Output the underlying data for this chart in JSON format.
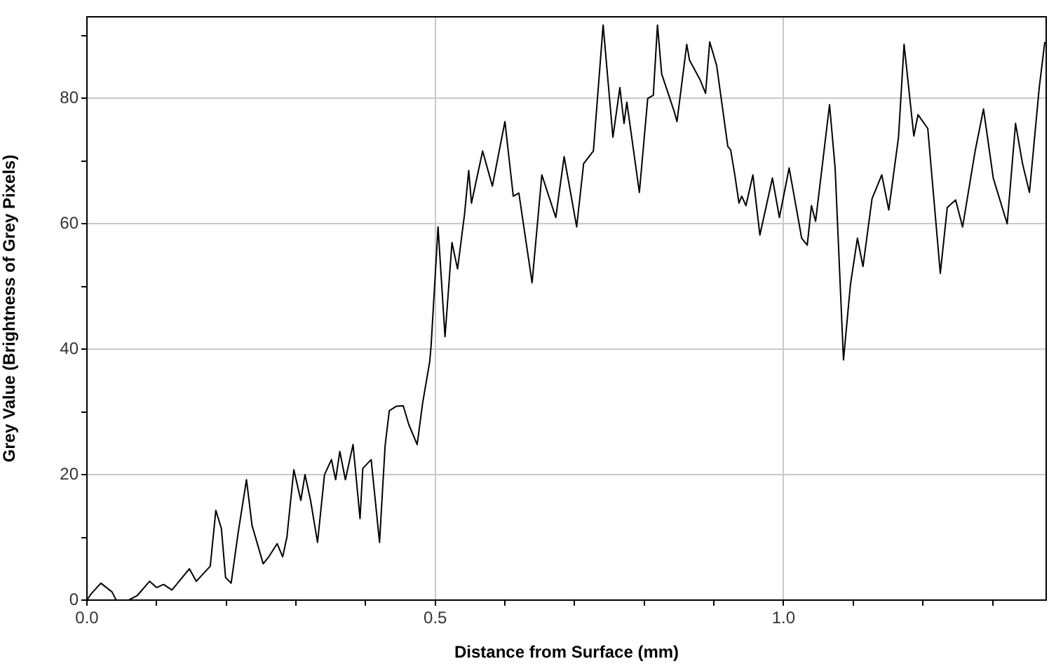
{
  "chart_data": {
    "type": "line",
    "xlabel": "Distance from Surface (mm)",
    "ylabel": "Grey Value (Brightness of Grey Pixels)",
    "color": "#000000",
    "marker": "none",
    "line_style": "solid",
    "grid": true,
    "legend": false,
    "xlim": [
      0,
      1.377
    ],
    "ylim": [
      0,
      93
    ],
    "xticks": [
      {
        "value": 0,
        "label": "0.0"
      },
      {
        "value": 0.1,
        "label": null
      },
      {
        "value": 0.2,
        "label": null
      },
      {
        "value": 0.3,
        "label": null
      },
      {
        "value": 0.4,
        "label": null
      },
      {
        "value": 0.5,
        "label": "0.5"
      },
      {
        "value": 0.6,
        "label": null
      },
      {
        "value": 0.7,
        "label": null
      },
      {
        "value": 0.8,
        "label": null
      },
      {
        "value": 0.9,
        "label": null
      },
      {
        "value": 1,
        "label": "1.0"
      },
      {
        "value": 1.1,
        "label": null
      },
      {
        "value": 1.2,
        "label": null
      },
      {
        "value": 1.3,
        "label": null
      }
    ],
    "yticks": [
      0,
      {
        "value": 10,
        "label": null
      },
      20,
      {
        "value": 30,
        "label": null
      },
      40,
      {
        "value": 50,
        "label": null
      },
      60,
      {
        "value": 70,
        "label": null
      },
      80,
      {
        "value": 90,
        "label": null
      }
    ],
    "x": [
      0,
      0.006,
      0.02,
      0.036,
      0.042,
      0.06,
      0.072,
      0.09,
      0.1,
      0.11,
      0.122,
      0.147,
      0.157,
      0.177,
      0.185,
      0.193,
      0.199,
      0.207,
      0.217,
      0.229,
      0.237,
      0.253,
      0.261,
      0.273,
      0.281,
      0.287,
      0.297,
      0.307,
      0.313,
      0.321,
      0.331,
      0.341,
      0.351,
      0.357,
      0.363,
      0.371,
      0.382,
      0.392,
      0.396,
      0.408,
      0.42,
      0.428,
      0.434,
      0.444,
      0.454,
      0.462,
      0.474,
      0.482,
      0.492,
      0.494,
      0.504,
      0.514,
      0.524,
      0.532,
      0.542,
      0.548,
      0.552,
      0.568,
      0.582,
      0.6,
      0.612,
      0.62,
      0.639,
      0.653,
      0.673,
      0.685,
      0.703,
      0.713,
      0.727,
      0.741,
      0.755,
      0.765,
      0.771,
      0.775,
      0.793,
      0.805,
      0.813,
      0.819,
      0.825,
      0.843,
      0.847,
      0.861,
      0.865,
      0.88,
      0.888,
      0.894,
      0.904,
      0.92,
      0.924,
      0.93,
      0.936,
      0.94,
      0.946,
      0.956,
      0.966,
      0.984,
      0.994,
      1.008,
      1.026,
      1.034,
      1.04,
      1.046,
      1.066,
      1.074,
      1.086,
      1.096,
      1.106,
      1.114,
      1.127,
      1.141,
      1.151,
      1.165,
      1.173,
      1.187,
      1.193,
      1.207,
      1.225,
      1.235,
      1.247,
      1.257,
      1.275,
      1.287,
      1.301,
      1.321,
      1.333,
      1.343,
      1.353,
      1.367,
      1.375
    ],
    "values": [
      0,
      1,
      2.7,
      1.3,
      0,
      0,
      0.7,
      3,
      2,
      2.5,
      1.6,
      5,
      3,
      5.4,
      14.3,
      11.4,
      3.6,
      2.7,
      10.7,
      19.2,
      11.9,
      5.8,
      6.9,
      9,
      6.9,
      10,
      20.8,
      15.9,
      20,
      15.9,
      9.2,
      20,
      22.4,
      19.2,
      23.7,
      19.2,
      24.8,
      13,
      21,
      22.4,
      9.2,
      24.6,
      30.2,
      30.9,
      31,
      28,
      24.8,
      31.5,
      38,
      40.5,
      59.5,
      42,
      57,
      52.8,
      61.5,
      68.5,
      63.3,
      71.6,
      66,
      76.3,
      64.4,
      64.9,
      50.6,
      67.8,
      61,
      70.7,
      59.5,
      69.6,
      71.6,
      91.7,
      73.8,
      81.7,
      76,
      79.4,
      65,
      80,
      80.5,
      91.7,
      83.9,
      77.9,
      76.3,
      88.6,
      86.1,
      83,
      80.8,
      89,
      85.2,
      72.3,
      71.8,
      67.8,
      63.3,
      64.4,
      62.9,
      67.8,
      58.2,
      67.3,
      61,
      68.9,
      57.7,
      56.6,
      62.9,
      60.4,
      79,
      68.9,
      38.3,
      50.3,
      57.7,
      53.2,
      64,
      67.8,
      62.2,
      73.8,
      88.6,
      74,
      77.4,
      75.2,
      52.1,
      62.6,
      63.8,
      59.5,
      71.6,
      78.3,
      67.3,
      60,
      76,
      69.6,
      65,
      81.7,
      89
    ]
  }
}
